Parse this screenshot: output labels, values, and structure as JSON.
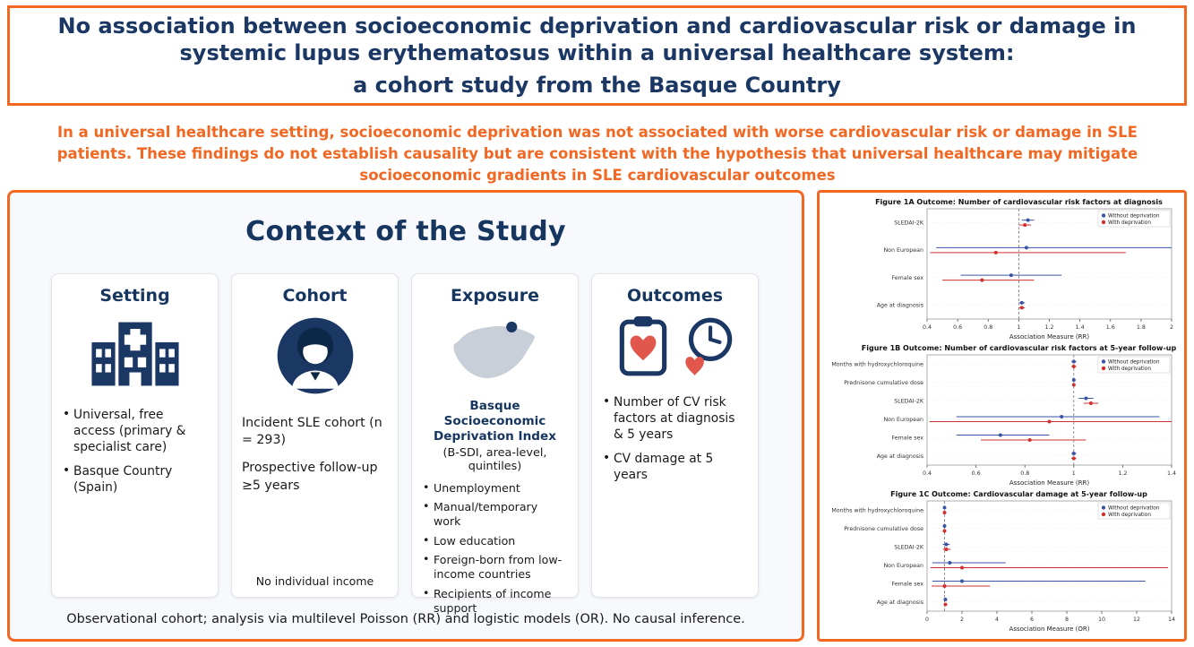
{
  "colors": {
    "orange": "#F26822",
    "navy": "#1B3764",
    "series_without": "#3A53A4",
    "series_with": "#D03030"
  },
  "title": {
    "main": "No association between socioeconomic deprivation and cardiovascular risk or damage in systemic lupus erythematosus within a universal healthcare system:",
    "subtitle": "a cohort study from the Basque Country"
  },
  "key_message": "In a universal healthcare setting, socioeconomic deprivation was not associated with worse cardiovascular risk or damage in SLE patients. These findings do not establish causality but are consistent with the hypothesis that universal healthcare may mitigate socioeconomic gradients in SLE cardiovascular outcomes",
  "context": {
    "heading": "Context of the Study",
    "footnote": "Observational cohort; analysis via multilevel Poisson (RR) and logistic models (OR). No causal inference.",
    "cards": [
      {
        "title": "Setting",
        "icon": "hospital-icon",
        "bullets": [
          "Universal, free access (primary & specialist care)",
          "Basque Country (Spain)"
        ]
      },
      {
        "title": "Cohort",
        "icon": "person-icon",
        "lines": [
          "Incident SLE cohort (n = 293)",
          "Prospective follow-up ≥5 years"
        ],
        "note": "No individual income"
      },
      {
        "title": "Exposure",
        "icon": "spain-map-icon",
        "bold_heading": "Basque Socioeconomic Deprivation Index",
        "subheading": "(B-SDI, area-level, quintiles)",
        "bullets": [
          "Unemployment",
          "Manual/temporary work",
          "Low education",
          "Foreign-born from low-income countries",
          "Recipients of income support"
        ]
      },
      {
        "title": "Outcomes",
        "icons": [
          "clipboard-heart-icon",
          "clock-heart-icon"
        ],
        "bullets": [
          "Number of CV risk factors at diagnosis & 5 years",
          "CV damage at 5 years"
        ]
      }
    ]
  },
  "chart_data": [
    {
      "type": "scatter",
      "subtype": "forest",
      "title": "Figure 1A Outcome: Number of cardiovascular risk factors at diagnosis",
      "xlabel": "Association Measure (RR)",
      "xlim": [
        0.4,
        2.0
      ],
      "xticks": [
        0.4,
        0.6,
        0.8,
        1.0,
        1.2,
        1.4,
        1.6,
        1.8,
        2.0
      ],
      "refline": 1.0,
      "legend_position": "upper right",
      "categories": [
        "SLEDAI-2K",
        "Non European",
        "Female sex",
        "Age at diagnosis"
      ],
      "series": [
        {
          "name": "Without deprivation",
          "color": "#3A53A4",
          "points": [
            [
              1.06,
              1.02,
              1.1
            ],
            [
              1.05,
              0.46,
              2.0
            ],
            [
              0.95,
              0.62,
              1.28
            ],
            [
              1.02,
              1.0,
              1.04
            ]
          ]
        },
        {
          "name": "With deprivation",
          "color": "#D03030",
          "points": [
            [
              1.04,
              1.0,
              1.08
            ],
            [
              0.85,
              0.42,
              1.7
            ],
            [
              0.76,
              0.5,
              1.1
            ],
            [
              1.02,
              1.0,
              1.04
            ]
          ]
        }
      ]
    },
    {
      "type": "scatter",
      "subtype": "forest",
      "title": "Figure 1B Outcome: Number of cardiovascular risk factors at 5-year follow-up",
      "xlabel": "Association Measure (RR)",
      "xlim": [
        0.4,
        1.4
      ],
      "xticks": [
        0.4,
        0.6,
        0.8,
        1.0,
        1.2,
        1.4
      ],
      "refline": 1.0,
      "legend_position": "upper right",
      "categories": [
        "Months with hydroxychloroquine",
        "Prednisone cumulative dose",
        "SLEDAI-2K",
        "Non European",
        "Female sex",
        "Age at diagnosis"
      ],
      "series": [
        {
          "name": "Without deprivation",
          "color": "#3A53A4",
          "points": [
            [
              1.0,
              0.99,
              1.01
            ],
            [
              1.0,
              1.0,
              1.0
            ],
            [
              1.05,
              1.02,
              1.08
            ],
            [
              0.95,
              0.52,
              1.35
            ],
            [
              0.7,
              0.52,
              0.9
            ],
            [
              1.0,
              0.99,
              1.01
            ]
          ]
        },
        {
          "name": "With deprivation",
          "color": "#D03030",
          "points": [
            [
              1.0,
              0.99,
              1.01
            ],
            [
              1.0,
              1.0,
              1.0
            ],
            [
              1.07,
              1.04,
              1.1
            ],
            [
              0.9,
              0.41,
              1.4
            ],
            [
              0.82,
              0.62,
              1.05
            ],
            [
              1.0,
              0.99,
              1.01
            ]
          ]
        }
      ]
    },
    {
      "type": "scatter",
      "subtype": "forest",
      "title": "Figure 1C Outcome: Cardiovascular damage at 5-year follow-up",
      "xlabel": "Association Measure (OR)",
      "xlim": [
        0,
        14
      ],
      "xticks": [
        0,
        2,
        4,
        6,
        8,
        10,
        12,
        14
      ],
      "refline": 1.0,
      "legend_position": "upper right",
      "categories": [
        "Months with hydroxychloroquine",
        "Prednisone cumulative dose",
        "SLEDAI-2K",
        "Non European",
        "Female sex",
        "Age at diagnosis"
      ],
      "series": [
        {
          "name": "Without deprivation",
          "color": "#3A53A4",
          "points": [
            [
              1.0,
              0.93,
              1.07
            ],
            [
              1.0,
              0.99,
              1.01
            ],
            [
              1.1,
              0.9,
              1.3
            ],
            [
              1.3,
              0.3,
              4.5
            ],
            [
              2.0,
              0.3,
              12.5
            ],
            [
              1.05,
              1.0,
              1.1
            ]
          ]
        },
        {
          "name": "With deprivation",
          "color": "#D03030",
          "points": [
            [
              1.0,
              0.93,
              1.07
            ],
            [
              1.0,
              0.99,
              1.01
            ],
            [
              1.1,
              0.9,
              1.35
            ],
            [
              2.0,
              0.2,
              13.8
            ],
            [
              1.0,
              0.25,
              3.6
            ],
            [
              1.05,
              1.0,
              1.1
            ]
          ]
        }
      ]
    }
  ]
}
